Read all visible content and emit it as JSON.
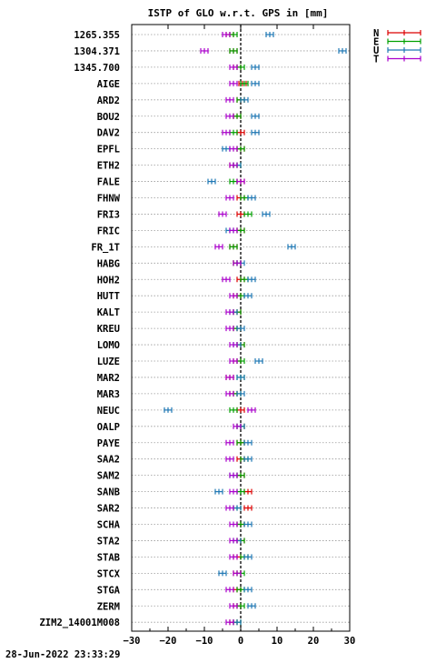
{
  "chart_data": {
    "type": "scatter",
    "title": "ISTP of GLO w.r.t. GPS in [mm]",
    "xlim": [
      -30,
      30
    ],
    "xticks": [
      -30,
      -20,
      -10,
      0,
      10,
      20,
      30
    ],
    "grid": "horizontal-dotted",
    "zero_line": 0,
    "legend_position": "top-right",
    "categories": [
      "1265.355",
      "1304.371",
      "1345.700",
      "AIGE",
      "ARD2",
      "BOU2",
      "DAV2",
      "EPFL",
      "ETH2",
      "FALE",
      "FHNW",
      "FRI3",
      "FRIC",
      "FR_1T",
      "HABG",
      "HOH2",
      "HUTT",
      "KALT",
      "KREU",
      "LOMO",
      "LUZE",
      "MAR2",
      "MAR3",
      "NEUC",
      "OALP",
      "PAYE",
      "SAA2",
      "SAM2",
      "SANB",
      "SAR2",
      "SCHA",
      "STA2",
      "STAB",
      "STCX",
      "STGA",
      "ZERM",
      "ZIM2_14001M008"
    ],
    "series": [
      {
        "name": "N",
        "color": "#dc0000",
        "values": [
          -3,
          -2,
          -1,
          0.5,
          0,
          -1,
          0,
          0,
          -2,
          0,
          0,
          0,
          0,
          -2,
          -1,
          0,
          -1,
          -1,
          -1,
          0,
          -1,
          -3,
          -2,
          0,
          0,
          0,
          0,
          0,
          2,
          2,
          0,
          0,
          -1,
          -1,
          -1,
          -1,
          -2
        ]
      },
      {
        "name": "E",
        "color": "#00a000",
        "values": [
          -2,
          -2,
          0,
          1,
          0,
          -1,
          -2,
          0,
          -1,
          -2,
          1,
          2,
          0,
          -2,
          -1,
          1,
          0,
          -1,
          -1,
          0,
          0,
          0,
          -1,
          -2,
          0,
          0,
          1,
          0,
          0,
          -1,
          0,
          0,
          1,
          0,
          0,
          0,
          -1
        ]
      },
      {
        "name": "U",
        "color": "#1f77b4",
        "values": [
          8,
          28,
          4,
          4,
          1,
          4,
          4,
          -4,
          -1,
          -8,
          3,
          7,
          -3,
          14,
          0,
          3,
          2,
          -2,
          0,
          -1,
          5,
          0,
          0,
          -20,
          0,
          2,
          2,
          -2,
          -6,
          -1,
          2,
          -1,
          2,
          -5,
          2,
          3,
          -1
        ]
      },
      {
        "name": "T",
        "color": "#aa00cc",
        "values": [
          -4,
          -10,
          -2,
          -2,
          -3,
          -3,
          -4,
          -2,
          -2,
          0,
          -3,
          -5,
          -2,
          -6,
          -1,
          -4,
          -2,
          -3,
          -3,
          -2,
          -2,
          -3,
          -3,
          3,
          -1,
          -3,
          -3,
          -2,
          -2,
          -3,
          -2,
          -2,
          -2,
          -1,
          -3,
          -2,
          -3
        ]
      }
    ]
  },
  "legend": [
    "N",
    "E",
    "U",
    "T"
  ],
  "footer": {
    "timestamp": "28-Jun-2022 23:33:29"
  }
}
